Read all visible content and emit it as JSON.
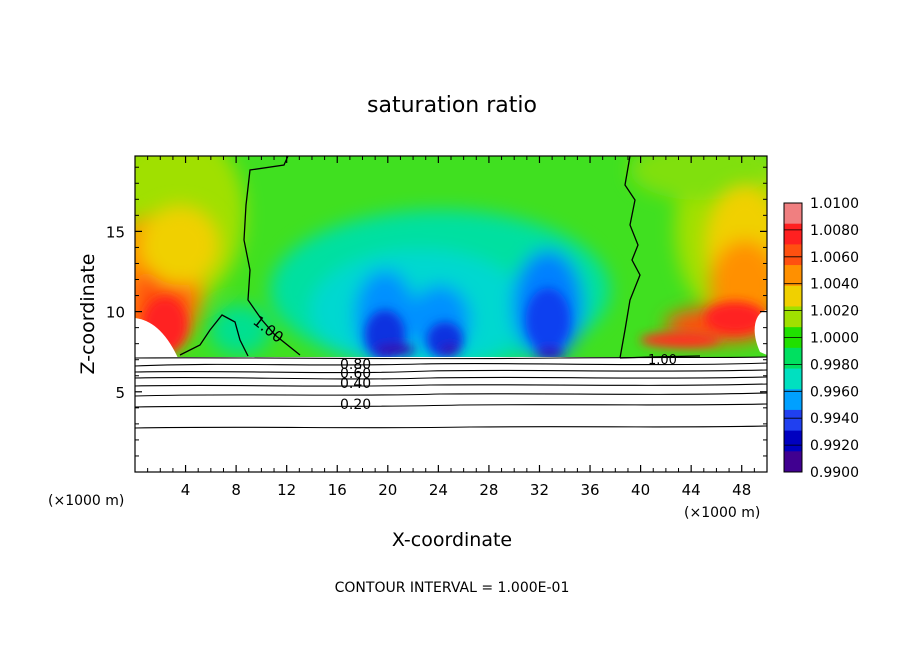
{
  "chart_data": {
    "type": "heatmap",
    "title": "saturation ratio",
    "xlabel": "X-coordinate",
    "ylabel": "Z-coordinate",
    "x_unit_left": "(×1000 m)",
    "x_unit_right": "(×1000 m)",
    "footer": "CONTOUR INTERVAL = 1.000E-01",
    "xlim": [
      0,
      50
    ],
    "ylim": [
      0,
      19.7
    ],
    "x_ticks": [
      4,
      8,
      12,
      16,
      20,
      24,
      28,
      32,
      36,
      40,
      44,
      48
    ],
    "y_ticks": [
      5,
      10,
      15
    ],
    "colorbar": {
      "ticks": [
        "1.0100",
        "1.0080",
        "1.0060",
        "1.0040",
        "1.0020",
        "1.0000",
        "0.9980",
        "0.9960",
        "0.9940",
        "0.9920",
        "0.9900"
      ],
      "colors": [
        "#f07f80",
        "#ff2020",
        "#ff5010",
        "#ff9000",
        "#f0d000",
        "#a0e000",
        "#20e000",
        "#00e060",
        "#00e0c0",
        "#00a0ff",
        "#2040f0",
        "#0000c0",
        "#400090"
      ]
    },
    "contour_labels": [
      "1.00",
      "1.00",
      "0.80",
      "0.60",
      "0.40",
      "0.20"
    ],
    "contour_lines": [
      {
        "level": 0.8,
        "z": 7.1
      },
      {
        "level": 0.7,
        "z": 6.75
      },
      {
        "level": 0.6,
        "z": 6.45
      },
      {
        "level": 0.5,
        "z": 6.0
      },
      {
        "level": 0.4,
        "z": 5.5
      },
      {
        "level": 0.3,
        "z": 5.0
      },
      {
        "level": 0.2,
        "z": 4.2
      },
      {
        "level": 0.1,
        "z": 2.9
      }
    ],
    "cloud_base_z": 7.2
  }
}
